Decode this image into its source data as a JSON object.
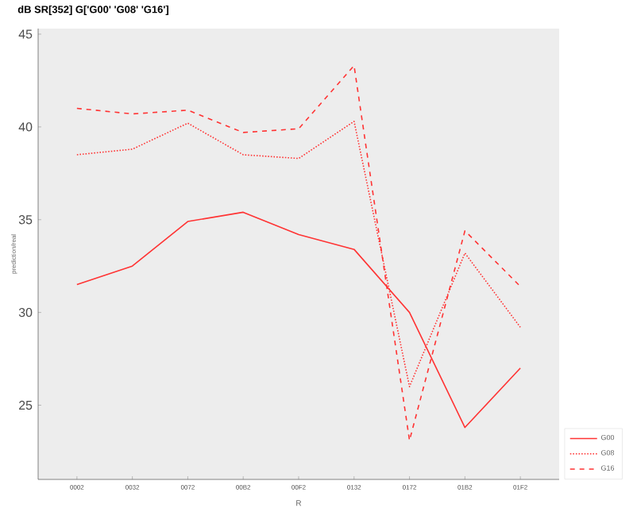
{
  "chart_data": {
    "type": "line",
    "title": "dB SR[352]  G['G00' 'G08' 'G16']",
    "xlabel": "R",
    "ylabel": "prediction/real",
    "categories": [
      "0002",
      "0032",
      "0072",
      "00B2",
      "00F2",
      "0132",
      "0172",
      "01B2",
      "01F2"
    ],
    "series": [
      {
        "name": "G00",
        "color": "#ff3333",
        "line_style": "solid",
        "values": [
          31.5,
          32.5,
          34.9,
          35.4,
          34.2,
          33.4,
          30.0,
          23.8,
          27.0
        ]
      },
      {
        "name": "G08",
        "color": "#ff3333",
        "line_style": "dotted",
        "values": [
          38.5,
          38.8,
          40.2,
          38.5,
          38.3,
          40.3,
          26.0,
          33.2,
          29.2
        ]
      },
      {
        "name": "G16",
        "color": "#ff3333",
        "line_style": "dashed",
        "values": [
          41.0,
          40.7,
          40.9,
          39.7,
          39.9,
          43.3,
          23.1,
          34.4,
          31.4
        ]
      }
    ],
    "ylim": [
      21,
      45.3
    ],
    "yticks": [
      25,
      30,
      35,
      40,
      45
    ],
    "legend": "bottom right",
    "grid": false
  }
}
